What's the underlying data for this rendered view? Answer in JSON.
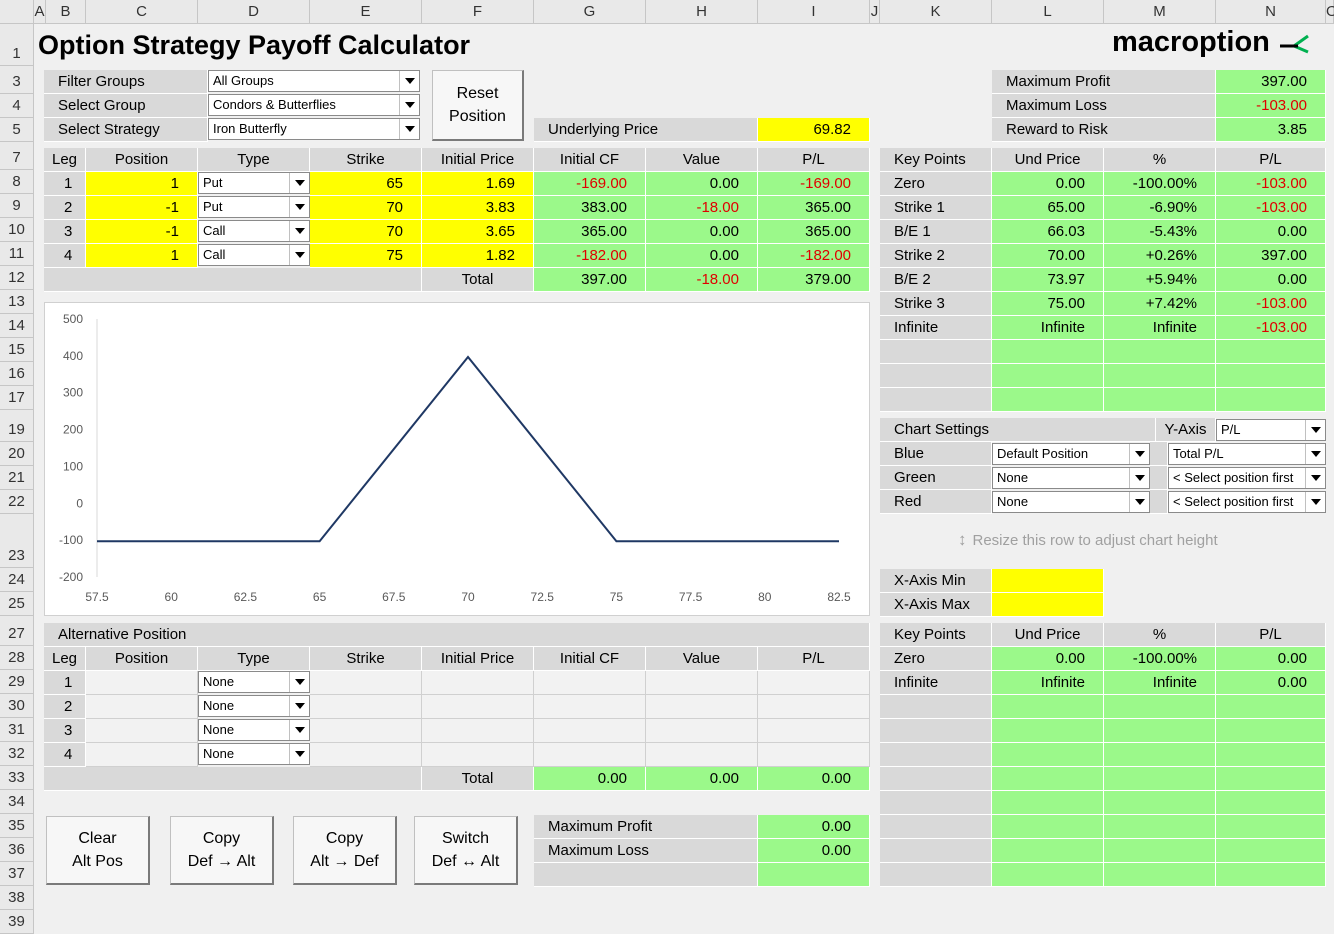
{
  "title": "Option Strategy Payoff Calculator",
  "brand": "macroption",
  "columns": [
    "A",
    "B",
    "C",
    "D",
    "E",
    "F",
    "G",
    "H",
    "I",
    "J",
    "K",
    "L",
    "M",
    "N",
    "O"
  ],
  "rows": [
    "1",
    "3",
    "4",
    "5",
    "7",
    "8",
    "9",
    "10",
    "11",
    "12",
    "13",
    "14",
    "15",
    "16",
    "17",
    "19",
    "20",
    "21",
    "22",
    "23",
    "24",
    "25",
    "27",
    "28",
    "29",
    "30",
    "31",
    "32",
    "33",
    "34",
    "35",
    "36",
    "37",
    "38",
    "39"
  ],
  "filters": {
    "filter_groups_label": "Filter Groups",
    "filter_groups_value": "All Groups",
    "select_group_label": "Select Group",
    "select_group_value": "Condors & Butterflies",
    "select_strategy_label": "Select Strategy",
    "select_strategy_value": "Iron Butterfly",
    "reset_line1": "Reset",
    "reset_line2": "Position",
    "underlying_label": "Underlying Price",
    "underlying_value": "69.82"
  },
  "summary": [
    {
      "label": "Maximum Profit",
      "value": "397.00",
      "neg": false
    },
    {
      "label": "Maximum Loss",
      "value": "-103.00",
      "neg": true
    },
    {
      "label": "Reward to Risk",
      "value": "3.85",
      "neg": false
    }
  ],
  "legs_header": [
    "Leg",
    "Position",
    "Type",
    "Strike",
    "Initial Price",
    "Initial CF",
    "Value",
    "P/L"
  ],
  "legs": [
    {
      "leg": "1",
      "position": "1",
      "type": "Put",
      "strike": "65",
      "price": "1.69",
      "cf": "-169.00",
      "value": "0.00",
      "pl": "-169.00"
    },
    {
      "leg": "2",
      "position": "-1",
      "type": "Put",
      "strike": "70",
      "price": "3.83",
      "cf": "383.00",
      "value": "-18.00",
      "pl": "365.00"
    },
    {
      "leg": "3",
      "position": "-1",
      "type": "Call",
      "strike": "70",
      "price": "3.65",
      "cf": "365.00",
      "value": "0.00",
      "pl": "365.00"
    },
    {
      "leg": "4",
      "position": "1",
      "type": "Call",
      "strike": "75",
      "price": "1.82",
      "cf": "-182.00",
      "value": "0.00",
      "pl": "-182.00"
    }
  ],
  "legs_total": {
    "label": "Total",
    "cf": "397.00",
    "value": "-18.00",
    "pl": "379.00"
  },
  "key_points_header": [
    "Key Points",
    "Und Price",
    "%",
    "P/L"
  ],
  "key_points": [
    {
      "name": "Zero",
      "price": "0.00",
      "pct": "-100.00%",
      "pl": "-103.00"
    },
    {
      "name": "Strike 1",
      "price": "65.00",
      "pct": "-6.90%",
      "pl": "-103.00"
    },
    {
      "name": "B/E 1",
      "price": "66.03",
      "pct": "-5.43%",
      "pl": "0.00"
    },
    {
      "name": "Strike 2",
      "price": "70.00",
      "pct": "+0.26%",
      "pl": "397.00"
    },
    {
      "name": "B/E 2",
      "price": "73.97",
      "pct": "+5.94%",
      "pl": "0.00"
    },
    {
      "name": "Strike 3",
      "price": "75.00",
      "pct": "+7.42%",
      "pl": "-103.00"
    },
    {
      "name": "Infinite",
      "price": "Infinite",
      "pct": "Infinite",
      "pl": "-103.00"
    }
  ],
  "chart_settings": {
    "label": "Chart Settings",
    "yaxis_label": "Y-Axis",
    "yaxis_value": "P/L",
    "rows": [
      {
        "name": "Blue",
        "sel1": "Default Position",
        "sel2": "Total P/L"
      },
      {
        "name": "Green",
        "sel1": "None",
        "sel2": "< Select position first"
      },
      {
        "name": "Red",
        "sel1": "None",
        "sel2": "< Select position first"
      }
    ],
    "resize_hint": "Resize this row to adjust chart height",
    "xmin_label": "X-Axis Min",
    "xmax_label": "X-Axis Max"
  },
  "chart_data": {
    "type": "line",
    "x": [
      57.5,
      65,
      66.03,
      70,
      73.97,
      75,
      82.5
    ],
    "series": [
      {
        "values": [
          -103,
          -103,
          0,
          397,
          0,
          -103,
          -103
        ],
        "color": "#1f3864"
      }
    ],
    "xticks": [
      "57.5",
      "60",
      "62.5",
      "65",
      "67.5",
      "70",
      "72.5",
      "75",
      "77.5",
      "80",
      "82.5"
    ],
    "yticks": [
      "500",
      "400",
      "300",
      "200",
      "100",
      "0",
      "-100",
      "-200"
    ],
    "xlim": [
      57.5,
      82.5
    ],
    "ylim": [
      -200,
      500
    ],
    "grid": false
  },
  "alt": {
    "title": "Alternative Position",
    "header": [
      "Leg",
      "Position",
      "Type",
      "Strike",
      "Initial Price",
      "Initial CF",
      "Value",
      "P/L"
    ],
    "legs": [
      {
        "leg": "1",
        "type": "None"
      },
      {
        "leg": "2",
        "type": "None"
      },
      {
        "leg": "3",
        "type": "None"
      },
      {
        "leg": "4",
        "type": "None"
      }
    ],
    "total": {
      "label": "Total",
      "cf": "0.00",
      "value": "0.00",
      "pl": "0.00"
    },
    "key_points": [
      {
        "name": "Zero",
        "price": "0.00",
        "pct": "-100.00%",
        "pl": "0.00"
      },
      {
        "name": "Infinite",
        "price": "Infinite",
        "pct": "Infinite",
        "pl": "0.00"
      }
    ],
    "max_profit_label": "Maximum Profit",
    "max_profit_value": "0.00",
    "max_loss_label": "Maximum Loss",
    "max_loss_value": "0.00"
  },
  "buttons": [
    {
      "l1": "Clear",
      "l2": "Alt Pos"
    },
    {
      "l1": "Copy",
      "l2": "Def → Alt"
    },
    {
      "l1": "Copy",
      "l2": "Alt → Def"
    },
    {
      "l1": "Switch",
      "l2": "Def ↔ Alt"
    }
  ]
}
